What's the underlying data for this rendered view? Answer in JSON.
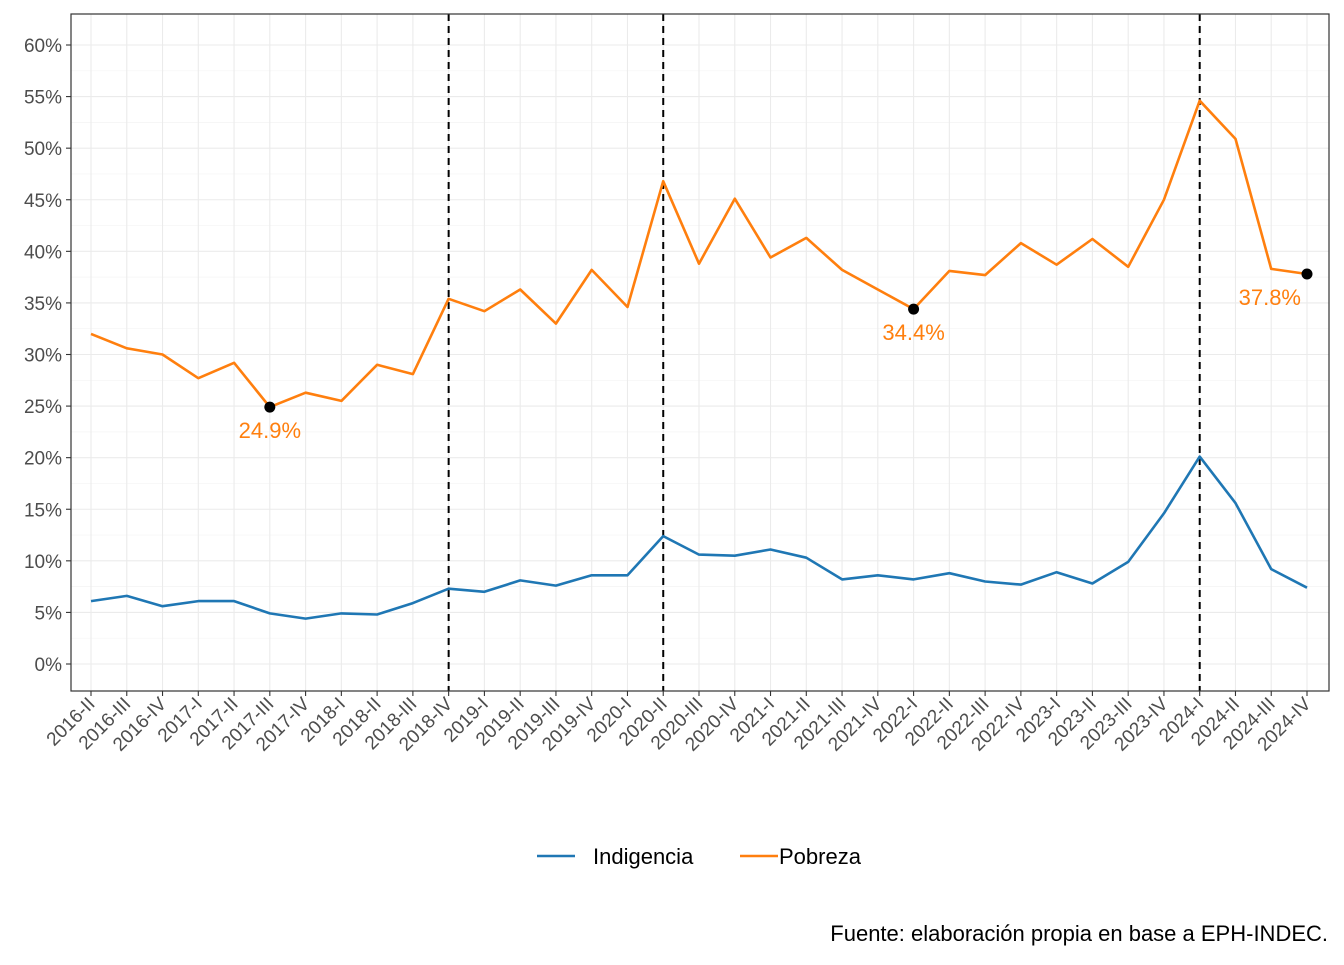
{
  "chart_data": {
    "type": "line",
    "x": [
      "2016-II",
      "2016-III",
      "2016-IV",
      "2017-I",
      "2017-II",
      "2017-III",
      "2017-IV",
      "2018-I",
      "2018-II",
      "2018-III",
      "2018-IV",
      "2019-I",
      "2019-II",
      "2019-III",
      "2019-IV",
      "2020-I",
      "2020-II",
      "2020-III",
      "2020-IV",
      "2021-I",
      "2021-II",
      "2021-III",
      "2021-IV",
      "2022-I",
      "2022-II",
      "2022-III",
      "2022-IV",
      "2023-I",
      "2023-II",
      "2023-III",
      "2023-IV",
      "2024-I",
      "2024-II",
      "2024-III",
      "2024-IV"
    ],
    "series": [
      {
        "name": "Indigencia",
        "color": "#1f77b4",
        "values": [
          6.1,
          6.6,
          5.6,
          6.1,
          6.1,
          4.9,
          4.4,
          4.9,
          4.8,
          5.9,
          7.3,
          7.0,
          8.1,
          7.6,
          8.6,
          8.6,
          12.4,
          10.6,
          10.5,
          11.1,
          10.3,
          8.2,
          8.6,
          8.2,
          8.8,
          8.0,
          7.7,
          8.9,
          7.8,
          9.9,
          14.6,
          20.1,
          15.6,
          9.2,
          7.4
        ]
      },
      {
        "name": "Pobreza",
        "color": "#ff7f0e",
        "values": [
          32.0,
          30.6,
          30.0,
          27.7,
          29.2,
          24.9,
          26.3,
          25.5,
          29.0,
          28.1,
          35.4,
          34.2,
          36.3,
          33.0,
          38.2,
          34.6,
          46.8,
          38.8,
          45.1,
          39.4,
          41.3,
          38.2,
          36.3,
          34.4,
          38.1,
          37.7,
          40.8,
          38.7,
          41.2,
          38.5,
          45.0,
          54.6,
          50.9,
          38.3,
          37.8
        ]
      }
    ],
    "highlights": [
      {
        "x": "2017-III",
        "value": 24.9,
        "label": "24.9%"
      },
      {
        "x": "2022-I",
        "value": 34.4,
        "label": "34.4%"
      },
      {
        "x": "2024-IV",
        "value": 37.8,
        "label": "37.8%"
      }
    ],
    "vlines": [
      "2018-IV",
      "2020-II",
      "2024-I"
    ],
    "ylim": [
      0,
      60
    ],
    "yticks": [
      0,
      5,
      10,
      15,
      20,
      25,
      30,
      35,
      40,
      45,
      50,
      55,
      60
    ],
    "ytick_labels": [
      "0%",
      "5%",
      "10%",
      "15%",
      "20%",
      "25%",
      "30%",
      "35%",
      "40%",
      "45%",
      "50%",
      "55%",
      "60%"
    ],
    "grid": true,
    "legend_position": "bottom",
    "caption": "Fuente: elaboración propia en base a EPH-INDEC."
  }
}
